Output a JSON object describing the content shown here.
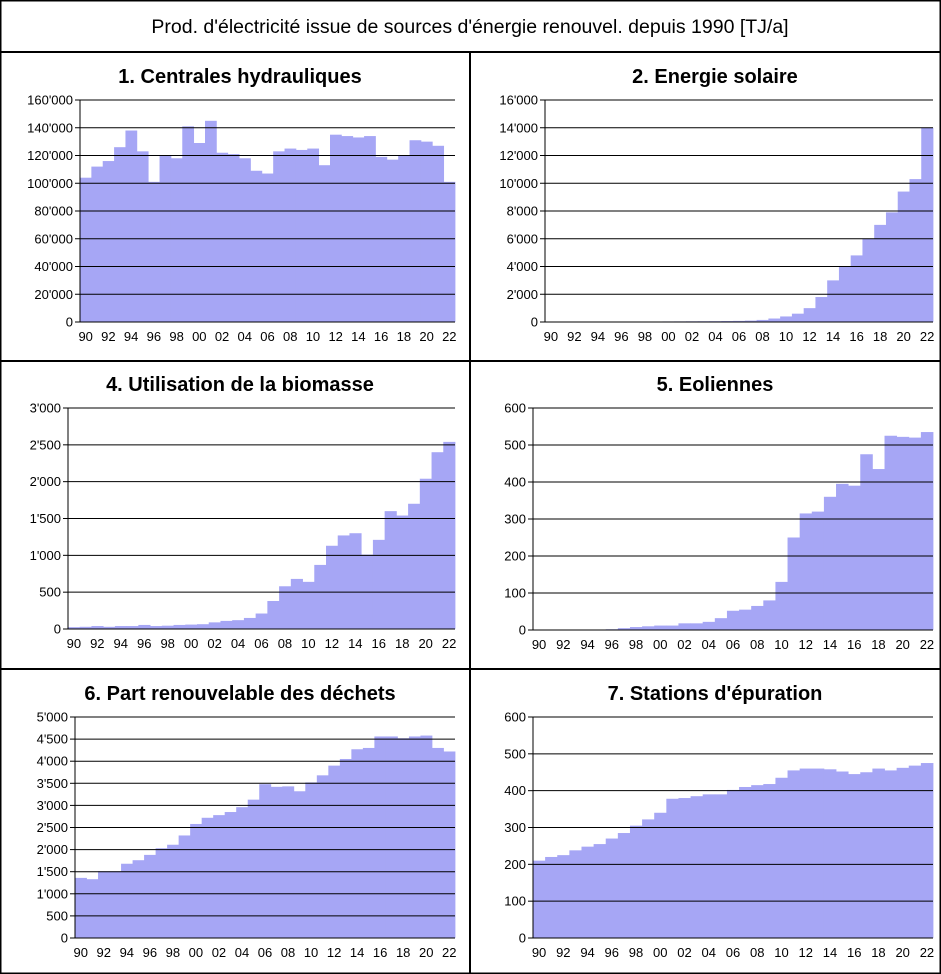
{
  "header": {
    "title": "Prod. d'électricité issue de sources d'énergie renouvel. depuis 1990 [TJ/a]"
  },
  "style": {
    "bar_color": "#a6a6f5",
    "border_color": "#000000",
    "background": "#ffffff"
  },
  "years": [
    "90",
    "91",
    "92",
    "93",
    "94",
    "95",
    "96",
    "97",
    "98",
    "99",
    "00",
    "01",
    "02",
    "03",
    "04",
    "05",
    "06",
    "07",
    "08",
    "09",
    "10",
    "11",
    "12",
    "13",
    "14",
    "15",
    "16",
    "17",
    "18",
    "19",
    "20",
    "21",
    "22"
  ],
  "tick_labels": [
    "90",
    "92",
    "94",
    "96",
    "98",
    "00",
    "02",
    "04",
    "06",
    "08",
    "10",
    "12",
    "14",
    "16",
    "18",
    "20",
    "22"
  ],
  "chart_data": [
    {
      "type": "bar",
      "title": "1. Centrales hydrauliques",
      "ylim": [
        0,
        160000
      ],
      "yticks": [
        0,
        20000,
        40000,
        60000,
        80000,
        100000,
        120000,
        140000,
        160000
      ],
      "ytick_labels": [
        "0",
        "20'000",
        "40'000",
        "60'000",
        "80'000",
        "100'000",
        "120'000",
        "140'000",
        "160'000"
      ],
      "grid": true,
      "values": [
        104000,
        112000,
        116000,
        126000,
        138000,
        123000,
        101000,
        120000,
        118000,
        141000,
        129000,
        145000,
        122000,
        121000,
        118000,
        109000,
        107000,
        123000,
        125000,
        124000,
        125000,
        113000,
        135000,
        134000,
        133000,
        134000,
        119000,
        117000,
        120000,
        131000,
        130000,
        127000,
        101000
      ]
    },
    {
      "type": "bar",
      "title": "2. Energie solaire",
      "ylim": [
        0,
        16000
      ],
      "yticks": [
        0,
        2000,
        4000,
        6000,
        8000,
        10000,
        12000,
        14000,
        16000
      ],
      "ytick_labels": [
        "0",
        "2'000",
        "4'000",
        "6'000",
        "8'000",
        "10'000",
        "12'000",
        "14'000",
        "16'000"
      ],
      "grid": true,
      "values": [
        5,
        8,
        10,
        12,
        15,
        18,
        20,
        25,
        30,
        35,
        40,
        45,
        50,
        55,
        60,
        70,
        80,
        100,
        150,
        250,
        400,
        600,
        1000,
        1800,
        3000,
        4000,
        4800,
        6000,
        7000,
        7900,
        9400,
        10300,
        14000
      ]
    },
    {
      "type": "bar",
      "title": "4. Utilisation de la biomasse",
      "ylim": [
        0,
        3000
      ],
      "yticks": [
        0,
        500,
        1000,
        1500,
        2000,
        2500,
        3000
      ],
      "ytick_labels": [
        "0",
        "500",
        "1'000",
        "1'500",
        "2'000",
        "2'500",
        "3'000"
      ],
      "grid": true,
      "values": [
        25,
        30,
        40,
        30,
        40,
        40,
        55,
        40,
        45,
        55,
        60,
        65,
        90,
        110,
        120,
        150,
        210,
        380,
        580,
        680,
        640,
        870,
        1130,
        1270,
        1300,
        1010,
        1210,
        1600,
        1540,
        1700,
        2040,
        2400,
        2540
      ]
    },
    {
      "type": "bar",
      "title": "5. Eoliennes",
      "ylim": [
        0,
        600
      ],
      "yticks": [
        0,
        100,
        200,
        300,
        400,
        500,
        600
      ],
      "ytick_labels": [
        "0",
        "100",
        "200",
        "300",
        "400",
        "500",
        "600"
      ],
      "grid": true,
      "values": [
        0,
        0,
        0,
        0,
        1,
        1,
        2,
        5,
        8,
        10,
        12,
        12,
        18,
        18,
        22,
        32,
        52,
        55,
        65,
        80,
        130,
        250,
        315,
        320,
        360,
        395,
        390,
        475,
        435,
        525,
        522,
        520,
        535
      ]
    },
    {
      "type": "bar",
      "title": "6. Part renouvelable des déchets",
      "ylim": [
        0,
        5000
      ],
      "yticks": [
        0,
        500,
        1000,
        1500,
        2000,
        2500,
        3000,
        3500,
        4000,
        4500,
        5000
      ],
      "ytick_labels": [
        "0",
        "500",
        "1'000",
        "1'500",
        "2'000",
        "2'500",
        "3'000",
        "3'500",
        "4'000",
        "4'500",
        "5'000"
      ],
      "grid": true,
      "values": [
        1360,
        1330,
        1510,
        1510,
        1680,
        1760,
        1880,
        2030,
        2110,
        2320,
        2580,
        2720,
        2780,
        2850,
        2960,
        3130,
        3480,
        3420,
        3430,
        3320,
        3520,
        3680,
        3900,
        4050,
        4270,
        4300,
        4560,
        4560,
        4520,
        4560,
        4580,
        4300,
        4220
      ]
    },
    {
      "type": "bar",
      "title": "7. Stations d'épuration",
      "ylim": [
        0,
        600
      ],
      "yticks": [
        0,
        100,
        200,
        300,
        400,
        500,
        600
      ],
      "ytick_labels": [
        "0",
        "100",
        "200",
        "300",
        "400",
        "500",
        "600"
      ],
      "grid": true,
      "values": [
        210,
        220,
        225,
        238,
        248,
        255,
        270,
        285,
        305,
        322,
        340,
        378,
        380,
        385,
        390,
        390,
        402,
        410,
        415,
        418,
        435,
        455,
        460,
        460,
        458,
        452,
        445,
        450,
        460,
        455,
        462,
        468,
        475
      ]
    }
  ]
}
